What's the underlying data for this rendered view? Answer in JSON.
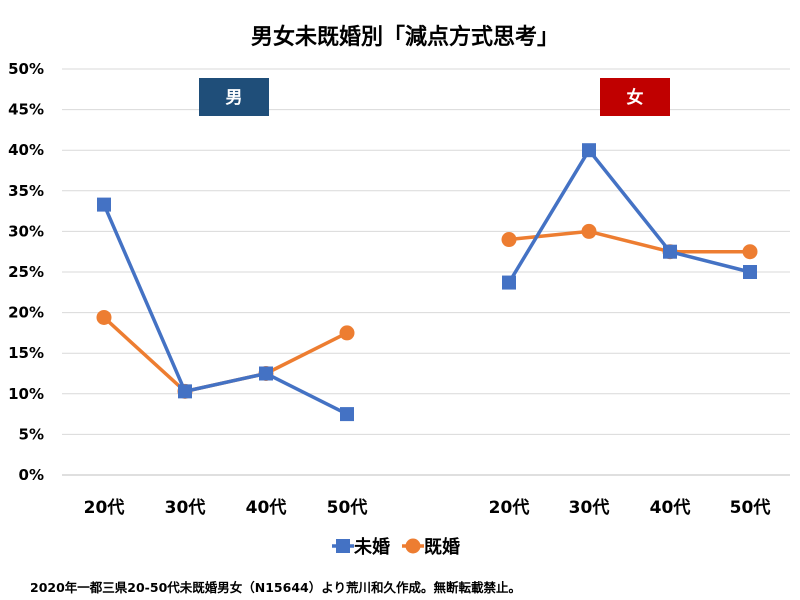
{
  "chart_data": {
    "type": "line",
    "title": "男女未既婚別「減点方式思考」",
    "footnote": "2020年一都三県20-50代未既婚男女（N15644）より荒川和久作成。無断転載禁止。",
    "y_ticks": [
      "0%",
      "5%",
      "10%",
      "15%",
      "20%",
      "25%",
      "30%",
      "35%",
      "40%",
      "45%",
      "50%"
    ],
    "ylim": [
      0,
      50
    ],
    "grid": true,
    "legend": {
      "position": "bottom"
    },
    "colors": {
      "未婚": "#4472C4",
      "既婚": "#ED7D31",
      "男_panel": "#1F4E79",
      "女_panel": "#C00000"
    },
    "panels": [
      {
        "label": "男",
        "categories": [
          "20代",
          "30代",
          "40代",
          "50代"
        ],
        "series": [
          {
            "name": "未婚",
            "marker": "square",
            "values": [
              33.3,
              10.3,
              12.5,
              7.5
            ]
          },
          {
            "name": "既婚",
            "marker": "circle",
            "values": [
              19.4,
              10.3,
              12.5,
              17.5
            ]
          }
        ]
      },
      {
        "label": "女",
        "categories": [
          "20代",
          "30代",
          "40代",
          "50代"
        ],
        "series": [
          {
            "name": "未婚",
            "marker": "square",
            "values": [
              23.7,
              40.0,
              27.5,
              25.0
            ]
          },
          {
            "name": "既婚",
            "marker": "circle",
            "values": [
              29.0,
              30.0,
              27.5,
              27.5
            ]
          }
        ]
      }
    ]
  }
}
